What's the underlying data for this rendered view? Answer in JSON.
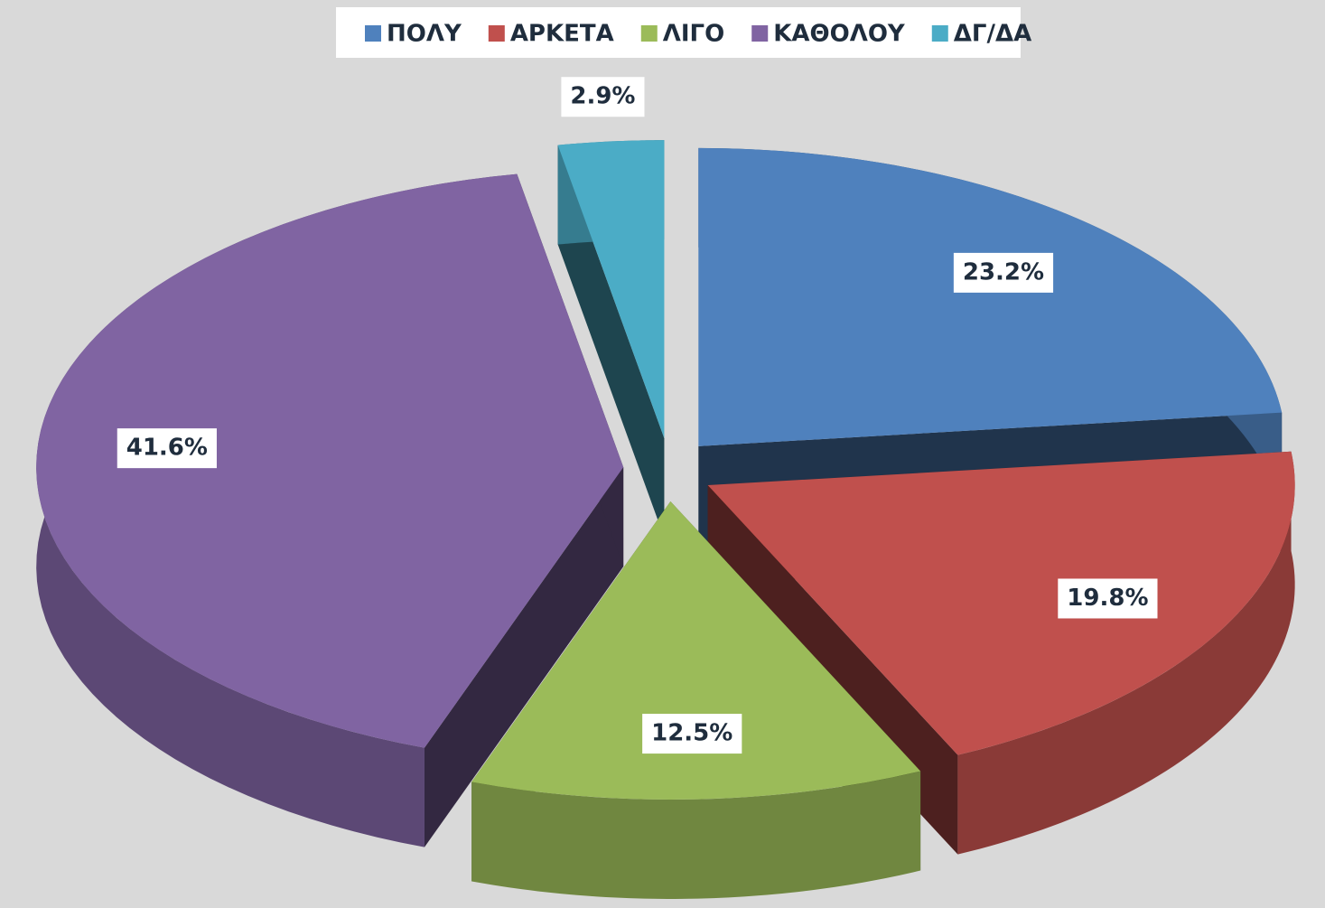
{
  "chart_data": {
    "type": "pie3d",
    "categories": [
      "ΠΟΛΥ",
      "ΑΡΚΕΤΑ",
      "ΛΙΓΟ",
      "ΚΑΘΟΛΟΥ",
      "ΔΓ/ΔΑ"
    ],
    "values": [
      23.2,
      19.8,
      12.5,
      41.6,
      2.9
    ],
    "value_labels": [
      "23.2%",
      "19.8%",
      "12.5%",
      "41.6%",
      "2.9%"
    ],
    "colors": [
      "#4f81bd",
      "#c0504d",
      "#9bbb59",
      "#8064a2",
      "#4bacc6"
    ],
    "legend": "top"
  }
}
